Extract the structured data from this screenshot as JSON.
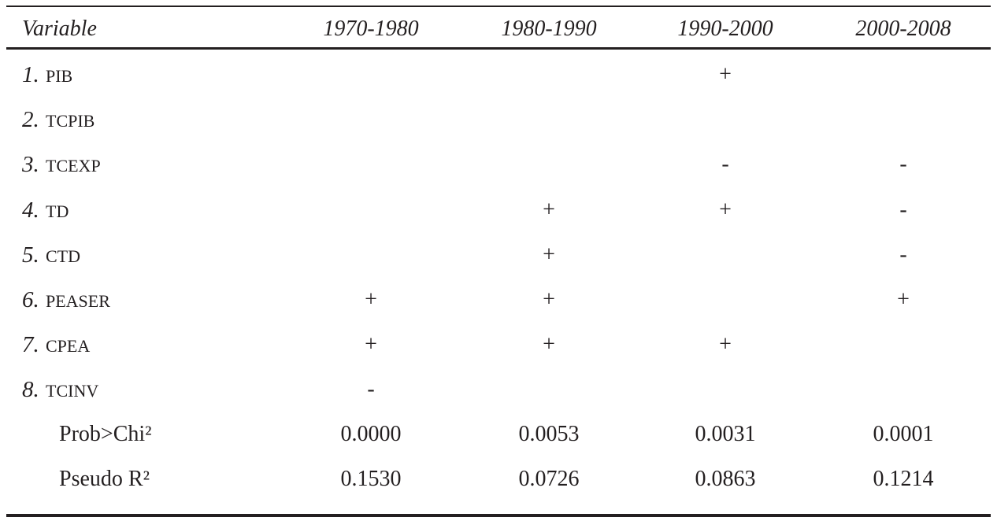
{
  "table": {
    "header": [
      "Variable",
      "1970-1980",
      "1980-1990",
      "1990-2000",
      "2000-2008"
    ],
    "rows": [
      {
        "number": "1.",
        "name": "PIB",
        "cells": [
          null,
          null,
          "+",
          null
        ]
      },
      {
        "number": "2.",
        "name": "TCPIB",
        "cells": [
          null,
          null,
          null,
          null
        ]
      },
      {
        "number": "3.",
        "name": "TCEXP",
        "cells": [
          null,
          null,
          "-",
          "-"
        ]
      },
      {
        "number": "4.",
        "name": "TD",
        "cells": [
          null,
          "+",
          "+",
          "-"
        ]
      },
      {
        "number": "5.",
        "name": "CTD",
        "cells": [
          null,
          "+",
          null,
          "-"
        ]
      },
      {
        "number": "6.",
        "name": "PEASER",
        "cells": [
          "+",
          "+",
          null,
          "+"
        ]
      },
      {
        "number": "7.",
        "name": "CPEA",
        "cells": [
          "+",
          "+",
          "+",
          null
        ]
      },
      {
        "number": "8.",
        "name": "TCINV",
        "cells": [
          "-",
          null,
          null,
          null
        ]
      }
    ],
    "stats": [
      {
        "label": "Prob>Chi²",
        "cells": [
          "0.0000",
          "0.0053",
          "0.0031",
          "0.0001"
        ]
      },
      {
        "label": "Pseudo R²",
        "cells": [
          "0.1530",
          "0.0726",
          "0.0863",
          "0.1214"
        ]
      }
    ]
  }
}
